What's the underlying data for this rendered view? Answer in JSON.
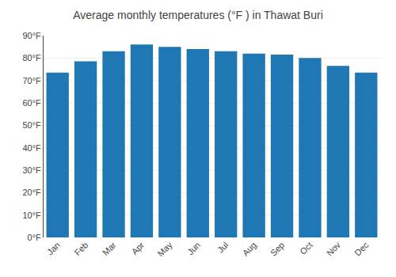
{
  "chart_data": {
    "type": "bar",
    "title": "Average monthly temperatures (°F ) in Thawat Buri",
    "categories": [
      "Jan",
      "Feb",
      "Mar",
      "Apr",
      "May",
      "Jun",
      "Jul",
      "Aug",
      "Sep",
      "Oct",
      "Nov",
      "Dec"
    ],
    "values": [
      73.5,
      78.5,
      83.0,
      86.0,
      85.0,
      84.0,
      83.0,
      82.0,
      81.5,
      80.0,
      76.5,
      73.5
    ],
    "ylim": [
      0,
      90
    ],
    "yticks": [
      {
        "value": 0,
        "label": "0°F"
      },
      {
        "value": 10,
        "label": "10°F"
      },
      {
        "value": 20,
        "label": "20°F"
      },
      {
        "value": 30,
        "label": "30°F"
      },
      {
        "value": 40,
        "label": "40°F"
      },
      {
        "value": 50,
        "label": "50°F"
      },
      {
        "value": 60,
        "label": "60°F"
      },
      {
        "value": 70,
        "label": "70°F"
      },
      {
        "value": 80,
        "label": "80°F"
      },
      {
        "value": 90,
        "label": "90°F"
      }
    ],
    "grid": true
  }
}
